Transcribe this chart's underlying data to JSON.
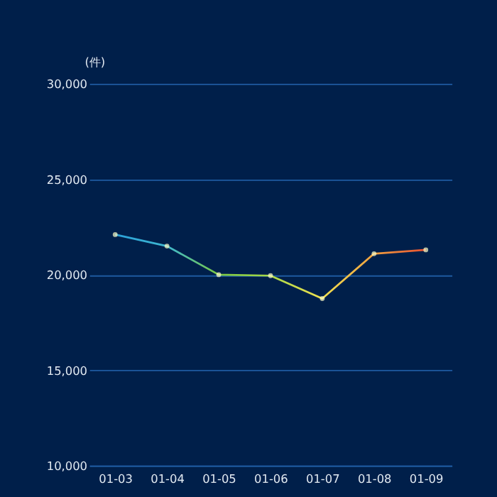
{
  "chart_data": {
    "type": "line",
    "ylabel": "(件)",
    "categories": [
      "01-03",
      "01-04",
      "01-05",
      "01-06",
      "01-07",
      "01-08",
      "01-09"
    ],
    "series": [
      {
        "color": "#ffffc8",
        "colors": [
          "#2a9fd8",
          "#3fb8d0",
          "#7ac943",
          "#a8d848",
          "#f0e050",
          "#f0a040",
          "#e85030"
        ],
        "values": [
          22100,
          21500,
          20000,
          19950,
          18750,
          21100,
          21300
        ]
      }
    ],
    "ylim": [
      10000,
      30000
    ],
    "yticks": [
      {
        "value": 10000,
        "label": "10,000"
      },
      {
        "value": 15000,
        "label": "15,000"
      },
      {
        "value": 20000,
        "label": "20,000"
      },
      {
        "value": 25000,
        "label": "25,000"
      },
      {
        "value": 30000,
        "label": "30,000"
      }
    ],
    "grid": "y",
    "marker": "circle",
    "line_style": "solid"
  }
}
